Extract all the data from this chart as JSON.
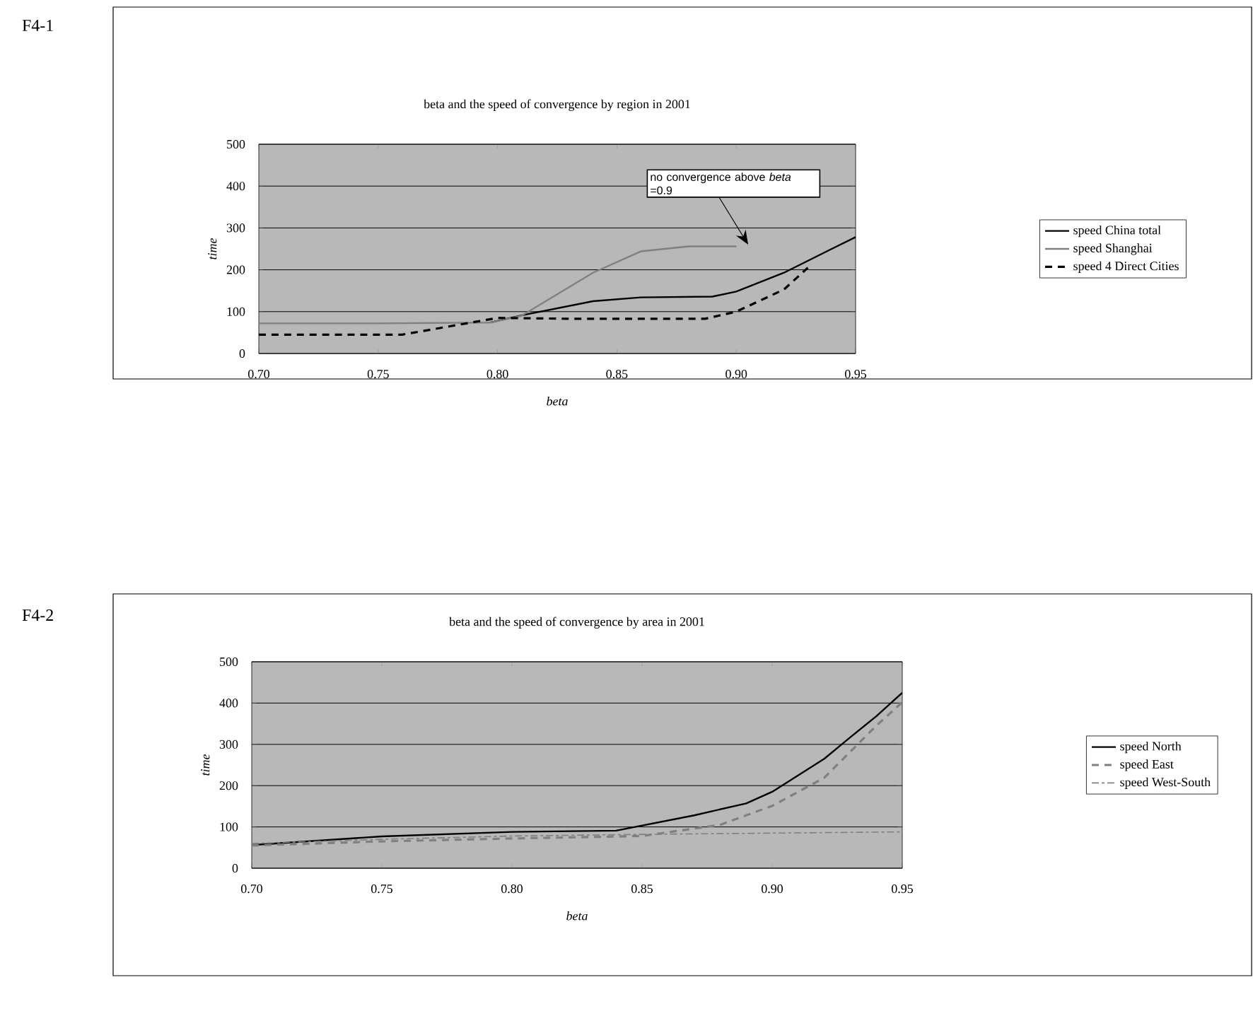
{
  "chart_data": [
    {
      "type": "line",
      "title": "beta and the speed of convergence by region in 2001",
      "xlabel": "beta",
      "ylabel": "time",
      "annotations": [
        "F4-1",
        "no convergence above *beta* =0.9"
      ],
      "xlim": [
        0.7,
        0.95
      ],
      "xticks": [
        {
          "value": 0.7,
          "label": "0.70"
        },
        0.75,
        {
          "value": 0.8,
          "label": "0.80"
        },
        0.85,
        {
          "value": 0.9,
          "label": "0.90"
        },
        0.95
      ],
      "ylim": [
        0,
        500
      ],
      "yticks": [
        0,
        100,
        200,
        300,
        400,
        500
      ],
      "grid": "y",
      "legend": "right",
      "marker": "none",
      "series": [
        {
          "name": "speed China total",
          "color": "#000000",
          "line_style": "solid",
          "x": [
            0.797,
            0.81,
            0.84,
            0.86,
            0.89,
            0.9,
            0.92,
            0.94,
            0.95
          ],
          "values": [
            74,
            91,
            125,
            134,
            136,
            148,
            193,
            250,
            278
          ]
        },
        {
          "name": "speed Shanghai",
          "color": "#808080",
          "line_style": "solid",
          "x": [
            0.7,
            0.75,
            0.797,
            0.81,
            0.84,
            0.86,
            0.88,
            0.9
          ],
          "values": [
            72,
            72,
            74,
            90,
            193,
            244,
            256,
            256
          ]
        },
        {
          "name": "speed 4 Direct Cities",
          "color": "#000000",
          "line_style": "dashed",
          "x": [
            0.7,
            0.76,
            0.78,
            0.8,
            0.83,
            0.887,
            0.9,
            0.92,
            0.93
          ],
          "values": [
            45,
            45,
            65,
            85,
            83,
            83,
            100,
            153,
            205
          ]
        }
      ]
    },
    {
      "type": "line",
      "title": "beta and the speed of convergence by area in 2001",
      "xlabel": "beta",
      "ylabel": "time",
      "annotations": [
        "F4-2"
      ],
      "xlim": [
        0.7,
        0.95
      ],
      "xticks": [
        {
          "value": 0.7,
          "label": "0.70"
        },
        0.75,
        {
          "value": 0.8,
          "label": "0.80"
        },
        0.85,
        {
          "value": 0.9,
          "label": "0.90"
        },
        0.95
      ],
      "ylim": [
        0,
        500
      ],
      "yticks": [
        0,
        100,
        200,
        300,
        400,
        500
      ],
      "grid": "y",
      "legend": "right",
      "marker": "none",
      "series": [
        {
          "name": "speed North",
          "color": "#000000",
          "line_style": "solid",
          "x": [
            0.7,
            0.75,
            0.8,
            0.84,
            0.87,
            0.89,
            0.9,
            0.92,
            0.93,
            0.94,
            0.95
          ],
          "values": [
            56,
            77,
            88,
            91,
            128,
            157,
            185,
            265,
            317,
            368,
            425
          ]
        },
        {
          "name": "speed East",
          "color": "#808080",
          "line_style": "dashed",
          "x": [
            0.7,
            0.75,
            0.8,
            0.85,
            0.88,
            0.9,
            0.92,
            0.94,
            0.95
          ],
          "values": [
            55,
            65,
            72,
            78,
            105,
            151,
            219,
            345,
            402
          ]
        },
        {
          "name": "speed West-South",
          "color": "#808080",
          "line_style": "dashdot",
          "x": [
            0.7,
            0.75,
            0.8,
            0.85,
            0.9,
            0.95
          ],
          "values": [
            60,
            70,
            78,
            82,
            85,
            88
          ]
        }
      ]
    }
  ]
}
